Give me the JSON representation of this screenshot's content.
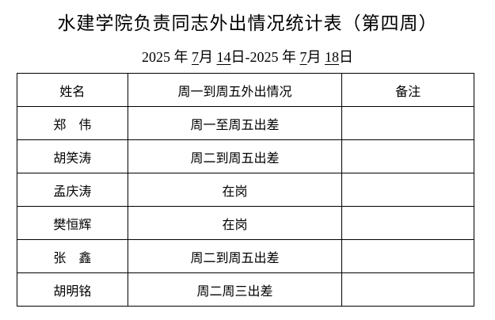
{
  "title": "水建学院负责同志外出情况统计表（第四周）",
  "date_range": {
    "start_year": "2025",
    "start_month": "7",
    "start_day": "14",
    "end_year": "2025",
    "end_month": "7",
    "end_day": "18",
    "year_unit": "年",
    "month_unit": "月",
    "day_unit": "日",
    "separator": "-"
  },
  "table": {
    "headers": [
      "姓名",
      "周一到周五外出情况",
      "备注"
    ],
    "rows": [
      {
        "name": "郑　伟",
        "status": "周一至周五出差",
        "note": ""
      },
      {
        "name": "胡笑涛",
        "status": "周二到周五出差",
        "note": ""
      },
      {
        "name": "孟庆涛",
        "status": "在岗",
        "note": ""
      },
      {
        "name": "樊恒辉",
        "status": "在岗",
        "note": ""
      },
      {
        "name": "张　鑫",
        "status": "周二到周五出差",
        "note": ""
      },
      {
        "name": "胡明铭",
        "status": "周二周三出差",
        "note": ""
      }
    ]
  }
}
